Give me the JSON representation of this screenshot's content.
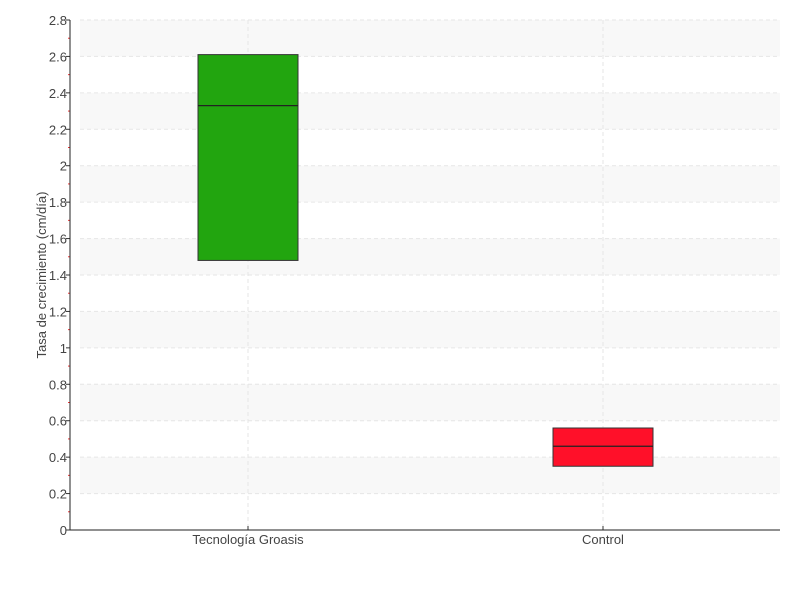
{
  "chart_data": {
    "type": "box",
    "title": "",
    "xlabel": "",
    "ylabel": "Tasa de crecimiento (cm/día)",
    "ylim": [
      0,
      2.8
    ],
    "yticks": [
      "0",
      "0.2",
      "0.4",
      "0.6",
      "0.8",
      "1",
      "1.2",
      "1.4",
      "1.6",
      "1.8",
      "2",
      "2.2",
      "2.4",
      "2.6",
      "2.8"
    ],
    "grid": true,
    "categories": [
      "Tecnología Groasis",
      "Control"
    ],
    "boxes": [
      {
        "category": "Tecnología Groasis",
        "q1": 1.48,
        "median": 2.33,
        "q3": 2.61,
        "color": "#22a50f"
      },
      {
        "category": "Control",
        "q1": 0.35,
        "median": 0.46,
        "q3": 0.56,
        "color": "#ff1029"
      }
    ]
  }
}
